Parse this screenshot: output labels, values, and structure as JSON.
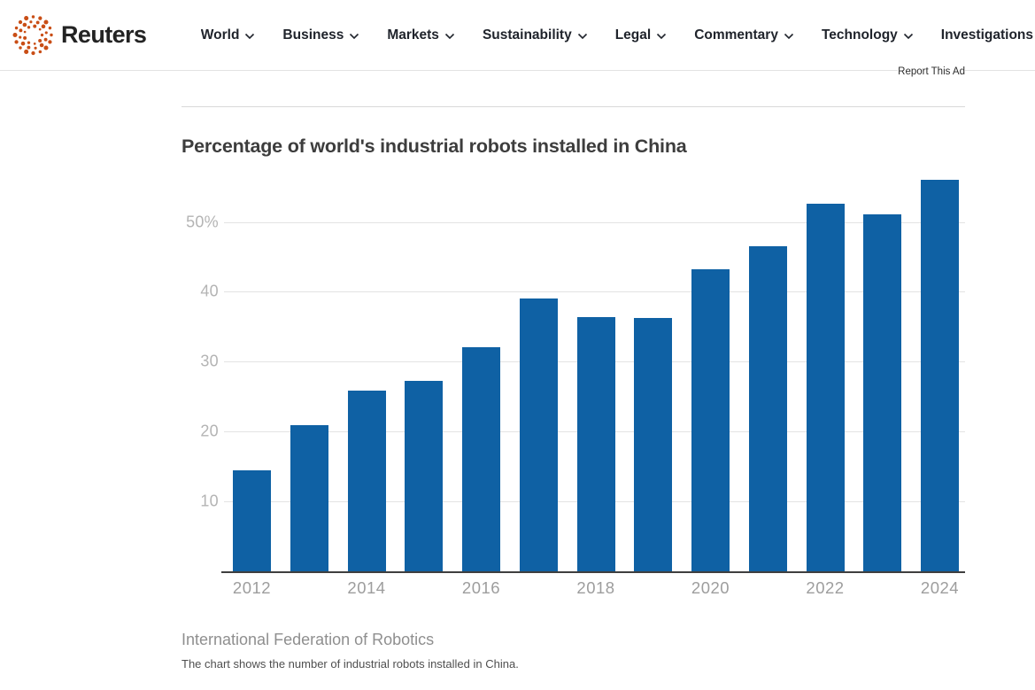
{
  "header": {
    "brand": "Reuters",
    "nav": [
      {
        "label": "World",
        "has_chevron": true
      },
      {
        "label": "Business",
        "has_chevron": true
      },
      {
        "label": "Markets",
        "has_chevron": true
      },
      {
        "label": "Sustainability",
        "has_chevron": true
      },
      {
        "label": "Legal",
        "has_chevron": true
      },
      {
        "label": "Commentary",
        "has_chevron": true
      },
      {
        "label": "Technology",
        "has_chevron": true
      },
      {
        "label": "Investigations",
        "has_chevron": false
      }
    ]
  },
  "ad": {
    "report_label": "Report This Ad"
  },
  "chart_data": {
    "type": "bar",
    "title": "Percentage of world's industrial robots installed in China",
    "categories": [
      "2012",
      "2013",
      "2014",
      "2015",
      "2016",
      "2017",
      "2018",
      "2019",
      "2020",
      "2021",
      "2022",
      "2023",
      "2024"
    ],
    "values": [
      14.5,
      20.9,
      25.8,
      27.2,
      32.1,
      39.0,
      36.4,
      36.2,
      43.2,
      46.5,
      52.6,
      51.1,
      56.0
    ],
    "unit": "%",
    "y_ticks": [
      {
        "value": 10,
        "label": "10"
      },
      {
        "value": 20,
        "label": "20"
      },
      {
        "value": 30,
        "label": "30"
      },
      {
        "value": 40,
        "label": "40"
      },
      {
        "value": 50,
        "label": "50%"
      }
    ],
    "x_tick_labels": [
      "2012",
      "2014",
      "2016",
      "2018",
      "2020",
      "2022",
      "2024"
    ],
    "ylim": [
      0,
      57
    ],
    "grid": true,
    "legend": "none",
    "bar_color": "#0f61a4",
    "source": "International Federation of Robotics",
    "note": "The chart shows the number of industrial robots installed in China."
  },
  "colors": {
    "brand_orange": "#c94e16",
    "bar_blue": "#0f61a4",
    "axis_dark": "#3f3f3f",
    "gridline": "#e3e3e3",
    "muted_label": "#b4b4b4"
  }
}
